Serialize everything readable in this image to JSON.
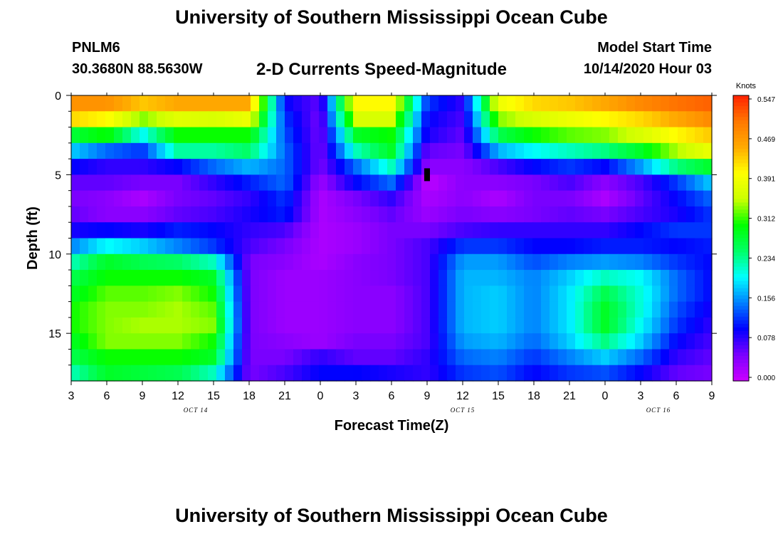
{
  "header": {
    "title": "University of Southern Mississippi Ocean Cube",
    "station": "PNLM6",
    "coords": "30.3680N 88.5630W",
    "subtitle": "2-D Currents Speed-Magnitude",
    "start_label": "Model Start Time",
    "start_value": "10/14/2020 Hour 03"
  },
  "footer": {
    "title": "University of Southern Mississippi Ocean Cube"
  },
  "chart_data": {
    "type": "heatmap",
    "title": "2-D Currents Speed-Magnitude",
    "xlabel": "Forecast Time(Z)",
    "ylabel": "Depth (ft)",
    "x_tick_labels": [
      "3",
      "6",
      "9",
      "12",
      "15",
      "18",
      "21",
      "0",
      "3",
      "6",
      "9",
      "12",
      "15",
      "18",
      "21",
      "0",
      "3",
      "6",
      "9"
    ],
    "date_labels": [
      {
        "label": "OCT 14",
        "at_tick": 3.5
      },
      {
        "label": "OCT 15",
        "at_tick": 11
      },
      {
        "label": "OCT 16",
        "at_tick": 16.5
      }
    ],
    "y_ticks": [
      0,
      5,
      10,
      15
    ],
    "ylim": [
      0,
      18
    ],
    "colorbar": {
      "title": "Knots",
      "ticks": [
        "0.547",
        "0.469",
        "0.391",
        "0.312",
        "0.234",
        "0.156",
        "0.078",
        "0.000"
      ],
      "range": [
        0,
        0.547
      ]
    },
    "colors": {
      "scale": [
        "#cc00ff",
        "#7a00ff",
        "#0000ff",
        "#0080ff",
        "#00ffff",
        "#00ff66",
        "#00ff00",
        "#ccff00",
        "#ffff00",
        "#ffaa00",
        "#ff7700",
        "#ff2200"
      ]
    },
    "hours": [
      3,
      6,
      9,
      12,
      15,
      18,
      21,
      24,
      27,
      30,
      33,
      36,
      39,
      42,
      45,
      48,
      51,
      54,
      57
    ],
    "depths": [
      0,
      1,
      2,
      3,
      4,
      5,
      6,
      7,
      8,
      9,
      10,
      11,
      12,
      13,
      14,
      15,
      16,
      17
    ],
    "values": [
      [
        0.47,
        0.47,
        0.43,
        0.45,
        0.45,
        0.45,
        0.1,
        0.06,
        0.4,
        0.4,
        0.12,
        0.08,
        0.38,
        0.42,
        0.43,
        0.45,
        0.48,
        0.5,
        0.51
      ],
      [
        0.42,
        0.4,
        0.33,
        0.37,
        0.36,
        0.38,
        0.12,
        0.05,
        0.36,
        0.36,
        0.1,
        0.07,
        0.33,
        0.36,
        0.38,
        0.4,
        0.42,
        0.45,
        0.48
      ],
      [
        0.27,
        0.3,
        0.2,
        0.3,
        0.3,
        0.3,
        0.13,
        0.05,
        0.28,
        0.3,
        0.09,
        0.06,
        0.26,
        0.3,
        0.32,
        0.33,
        0.36,
        0.4,
        0.43
      ],
      [
        0.18,
        0.14,
        0.12,
        0.23,
        0.23,
        0.25,
        0.14,
        0.05,
        0.22,
        0.28,
        0.06,
        0.05,
        0.17,
        0.2,
        0.22,
        0.24,
        0.28,
        0.34,
        0.38
      ],
      [
        0.1,
        0.08,
        0.08,
        0.1,
        0.14,
        0.17,
        0.14,
        0.05,
        0.14,
        0.22,
        0.04,
        0.04,
        0.07,
        0.1,
        0.12,
        0.1,
        0.16,
        0.24,
        0.28
      ],
      [
        0.06,
        0.06,
        0.05,
        0.05,
        0.08,
        0.11,
        0.14,
        0.03,
        0.1,
        0.14,
        0.01,
        0.04,
        0.04,
        0.05,
        0.07,
        0.04,
        0.07,
        0.12,
        0.18
      ],
      [
        0.05,
        0.04,
        0.02,
        0.05,
        0.06,
        0.08,
        0.12,
        0.02,
        0.05,
        0.08,
        0.02,
        0.04,
        0.02,
        0.05,
        0.05,
        0.02,
        0.06,
        0.1,
        0.14
      ],
      [
        0.06,
        0.04,
        0.04,
        0.06,
        0.07,
        0.09,
        0.11,
        0.02,
        0.04,
        0.06,
        0.03,
        0.05,
        0.04,
        0.05,
        0.06,
        0.05,
        0.07,
        0.09,
        0.12
      ],
      [
        0.09,
        0.1,
        0.09,
        0.11,
        0.1,
        0.08,
        0.07,
        0.02,
        0.03,
        0.05,
        0.05,
        0.07,
        0.08,
        0.08,
        0.08,
        0.08,
        0.1,
        0.12,
        0.12
      ],
      [
        0.15,
        0.2,
        0.18,
        0.15,
        0.12,
        0.07,
        0.05,
        0.02,
        0.03,
        0.05,
        0.07,
        0.12,
        0.12,
        0.1,
        0.1,
        0.11,
        0.11,
        0.1,
        0.11
      ],
      [
        0.22,
        0.28,
        0.26,
        0.25,
        0.22,
        0.05,
        0.04,
        0.02,
        0.04,
        0.05,
        0.07,
        0.16,
        0.16,
        0.13,
        0.15,
        0.16,
        0.15,
        0.12,
        0.1
      ],
      [
        0.26,
        0.3,
        0.3,
        0.3,
        0.28,
        0.05,
        0.03,
        0.03,
        0.04,
        0.05,
        0.07,
        0.17,
        0.17,
        0.15,
        0.18,
        0.22,
        0.2,
        0.14,
        0.1
      ],
      [
        0.28,
        0.32,
        0.32,
        0.33,
        0.3,
        0.05,
        0.03,
        0.03,
        0.04,
        0.04,
        0.07,
        0.17,
        0.18,
        0.15,
        0.19,
        0.26,
        0.21,
        0.14,
        0.1
      ],
      [
        0.3,
        0.33,
        0.33,
        0.34,
        0.32,
        0.05,
        0.03,
        0.03,
        0.04,
        0.04,
        0.07,
        0.17,
        0.18,
        0.15,
        0.19,
        0.28,
        0.21,
        0.13,
        0.09
      ],
      [
        0.3,
        0.33,
        0.34,
        0.34,
        0.33,
        0.05,
        0.03,
        0.03,
        0.04,
        0.04,
        0.07,
        0.17,
        0.18,
        0.15,
        0.19,
        0.28,
        0.2,
        0.12,
        0.08
      ],
      [
        0.28,
        0.33,
        0.33,
        0.33,
        0.3,
        0.05,
        0.04,
        0.03,
        0.05,
        0.05,
        0.07,
        0.16,
        0.17,
        0.14,
        0.18,
        0.24,
        0.18,
        0.1,
        0.07
      ],
      [
        0.26,
        0.3,
        0.3,
        0.3,
        0.28,
        0.05,
        0.05,
        0.08,
        0.06,
        0.06,
        0.08,
        0.14,
        0.15,
        0.12,
        0.15,
        0.18,
        0.14,
        0.08,
        0.06
      ],
      [
        0.22,
        0.28,
        0.27,
        0.26,
        0.22,
        0.05,
        0.07,
        0.1,
        0.1,
        0.09,
        0.08,
        0.12,
        0.13,
        0.1,
        0.12,
        0.13,
        0.1,
        0.06,
        0.05
      ]
    ],
    "missing_cells": [
      {
        "hour": 33,
        "depth": 5
      }
    ]
  }
}
